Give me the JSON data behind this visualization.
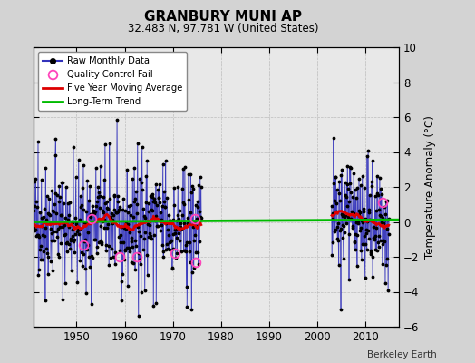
{
  "title": "GRANBURY MUNI AP",
  "subtitle": "32.483 N, 97.781 W (United States)",
  "ylabel": "Temperature Anomaly (°C)",
  "attribution": "Berkeley Earth",
  "xlim": [
    1941,
    2017
  ],
  "ylim": [
    -6,
    10
  ],
  "yticks": [
    -6,
    -4,
    -2,
    0,
    2,
    4,
    6,
    8,
    10
  ],
  "xticks": [
    1950,
    1960,
    1970,
    1980,
    1990,
    2000,
    2010
  ],
  "background_color": "#d3d3d3",
  "plot_bg_color": "#e8e8e8",
  "raw_line_color": "#3333bb",
  "raw_dot_color": "#000000",
  "qc_fail_color": "#ff44bb",
  "moving_avg_color": "#dd0000",
  "trend_color": "#00bb00",
  "seed": 42
}
